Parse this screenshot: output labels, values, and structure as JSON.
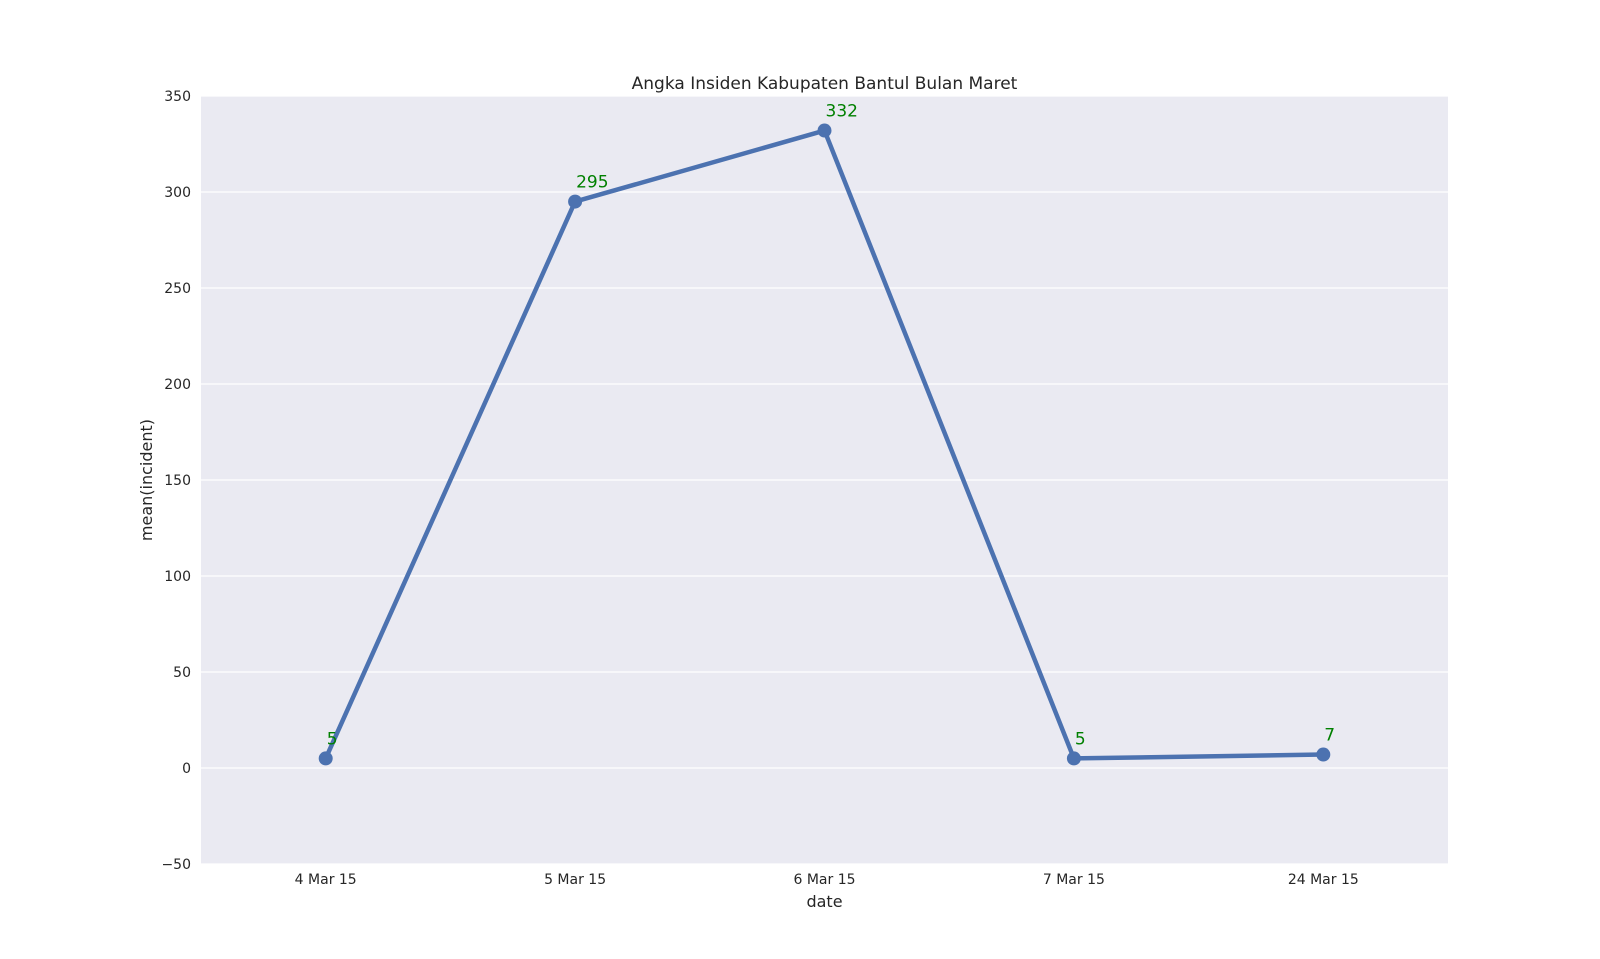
{
  "chart_data": {
    "type": "line",
    "title": "Angka Insiden Kabupaten Bantul Bulan Maret",
    "xlabel": "date",
    "ylabel": "mean(incident)",
    "categories": [
      "4 Mar 15",
      "5 Mar 15",
      "6 Mar 15",
      "7 Mar 15",
      "24 Mar 15"
    ],
    "series": [
      {
        "values": [
          5,
          295,
          332,
          5,
          7
        ],
        "data_labels": [
          "5",
          "295",
          "332",
          "5",
          "7"
        ],
        "color": "#4c72b0"
      }
    ],
    "ylim": [
      -50,
      350
    ],
    "yticks": [
      -50,
      0,
      50,
      100,
      150,
      200,
      250,
      300,
      350
    ],
    "ytick_labels": [
      "−50",
      "0",
      "50",
      "100",
      "150",
      "200",
      "250",
      "300",
      "350"
    ],
    "grid": true,
    "legend": "none",
    "background_color": "#eaeaf2",
    "grid_color": "#ffffff",
    "label_color": "#008000"
  }
}
